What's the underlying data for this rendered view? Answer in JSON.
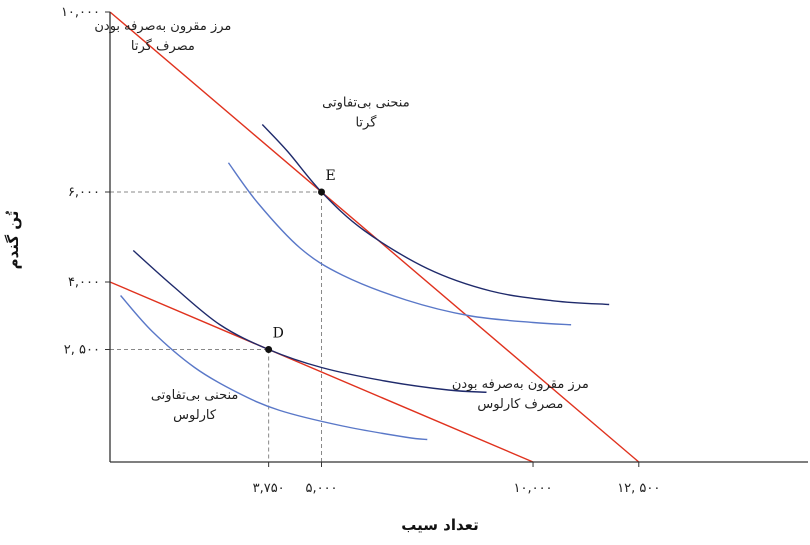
{
  "chart_data": {
    "type": "line",
    "xlabel": "تعداد سیب",
    "ylabel": "تُن گندم",
    "xlim": [
      0,
      16500
    ],
    "ylim": [
      0,
      10000
    ],
    "x_ticks": [
      {
        "value": 3750,
        "label": "۳,۷۵۰"
      },
      {
        "value": 5000,
        "label": "۵,۰۰۰"
      },
      {
        "value": 10000,
        "label": "۱۰,۰۰۰"
      },
      {
        "value": 12500,
        "label": "۱۲, ۵۰۰"
      }
    ],
    "y_ticks": [
      {
        "value": 10000,
        "label": "۱۰,۰۰۰"
      },
      {
        "value": 6000,
        "label": "۶,۰۰۰"
      },
      {
        "value": 4000,
        "label": "۴,۰۰۰"
      },
      {
        "value": 2500,
        "label": "۲, ۵۰۰"
      }
    ],
    "colors": {
      "frontier": "#e0321e",
      "indifference_dark": "#1f2a6b",
      "indifference_light": "#5a78c8",
      "guide": "#888888",
      "axis": "#333333"
    },
    "series": [
      {
        "name": "مرز مقرون به‌صرفه بودن مصرف گرتا",
        "kind": "frontier",
        "points": [
          [
            0,
            10000
          ],
          [
            12500,
            0
          ]
        ]
      },
      {
        "name": "مرز مقرون به‌صرفه بودن مصرف کارلوس",
        "kind": "frontier",
        "points": [
          [
            0,
            4000
          ],
          [
            10000,
            0
          ]
        ]
      },
      {
        "name": "منحنی بی‌تفاوتی گرتا",
        "kind": "indifference_dark",
        "points": [
          [
            3600,
            7500
          ],
          [
            4200,
            6900
          ],
          [
            5000,
            6000
          ],
          [
            6000,
            5150
          ],
          [
            7500,
            4300
          ],
          [
            9000,
            3800
          ],
          [
            10500,
            3580
          ],
          [
            11800,
            3500
          ]
        ]
      },
      {
        "name": "",
        "kind": "indifference_light",
        "points": [
          [
            2800,
            6650
          ],
          [
            3500,
            5750
          ],
          [
            4500,
            4750
          ],
          [
            5500,
            4150
          ],
          [
            7000,
            3600
          ],
          [
            8500,
            3250
          ],
          [
            10000,
            3100
          ],
          [
            10900,
            3050
          ]
        ]
      },
      {
        "name": "منحنی بی‌تفاوتی کارلوس",
        "kind": "indifference_dark",
        "points": [
          [
            550,
            4700
          ],
          [
            1500,
            3900
          ],
          [
            2600,
            3050
          ],
          [
            3750,
            2500
          ],
          [
            5000,
            2100
          ],
          [
            6500,
            1800
          ],
          [
            8000,
            1600
          ],
          [
            8900,
            1550
          ]
        ]
      },
      {
        "name": "",
        "kind": "indifference_light",
        "points": [
          [
            250,
            3700
          ],
          [
            1000,
            2900
          ],
          [
            2000,
            2100
          ],
          [
            3000,
            1550
          ],
          [
            4000,
            1150
          ],
          [
            5500,
            800
          ],
          [
            7000,
            550
          ],
          [
            7500,
            500
          ]
        ]
      }
    ],
    "points": [
      {
        "label": "E",
        "x": 5000,
        "y": 6000
      },
      {
        "label": "D",
        "x": 3750,
        "y": 2500
      }
    ],
    "annotations": [
      {
        "text_lines": [
          "مرز مقرون به‌صرفه بودن",
          "مصرف گرتا"
        ],
        "x": 1250,
        "y": 9600
      },
      {
        "text_lines": [
          "منحنی بی‌تفاوتی",
          "گرتا"
        ],
        "x": 6050,
        "y": 7900
      },
      {
        "text_lines": [
          "مرز مقرون به‌صرفه بودن",
          "مصرف کارلوس"
        ],
        "x": 9700,
        "y": 1650
      },
      {
        "text_lines": [
          "منحنی بی‌تفاوتی",
          "کارلوس"
        ],
        "x": 2000,
        "y": 1400
      }
    ]
  }
}
